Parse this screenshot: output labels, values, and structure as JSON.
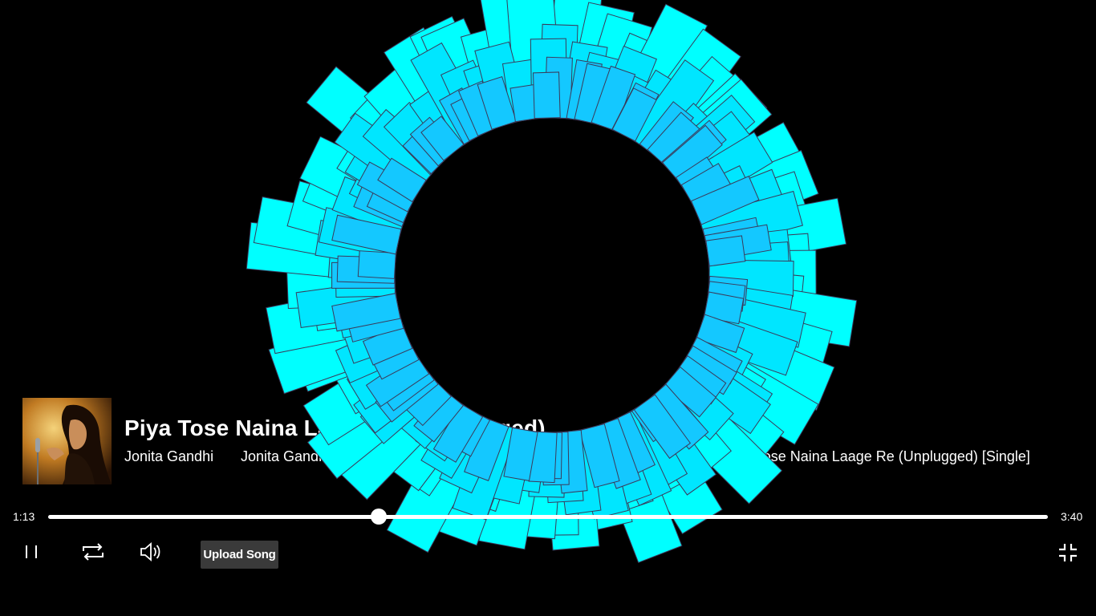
{
  "track": {
    "title": "Piya Tose Naina Laage Re (Unplugged)",
    "artist": "Jonita Gandhi",
    "album_artist": "Jonita Gandhi & Keba Jeremiah",
    "album": "Piya Tose Naina Laage Re (Unplugged) [Single]"
  },
  "playback": {
    "current_time": "1:13",
    "total_time": "3:40",
    "progress": 0.331,
    "state": "playing"
  },
  "controls": {
    "pause_icon": "pause-icon",
    "repeat_icon": "repeat-icon",
    "volume_icon": "volume-icon",
    "upload_label": "Upload Song",
    "fullscreen_icon": "exit-fullscreen-icon"
  },
  "visualizer": {
    "style": "radial-bars",
    "bar_count": 64,
    "colors": {
      "outer": "#00ffff",
      "mid": "#00e6ff",
      "inner": "#14c8ff",
      "outline": "#3a3a5a",
      "background": "#000000"
    }
  }
}
